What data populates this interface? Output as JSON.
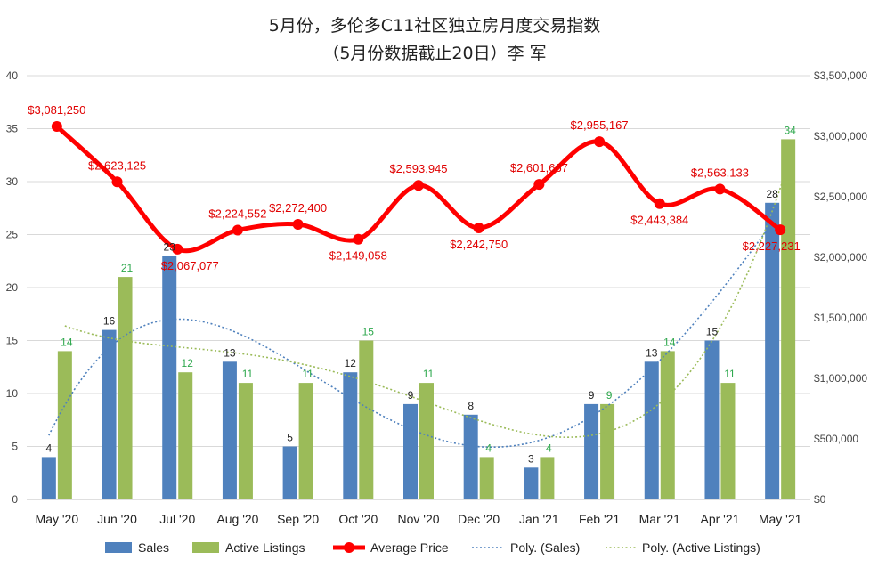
{
  "chart_data": {
    "type": "bar",
    "title_line1": "5月份，多伦多C11社区独立房月度交易指数",
    "title_line2": "（5月份数据截止20日）李 军",
    "categories": [
      "May '20",
      "Jun '20",
      "Jul '20",
      "Aug '20",
      "Sep '20",
      "Oct '20",
      "Nov '20",
      "Dec '20",
      "Jan '21",
      "Feb '21",
      "Mar '21",
      "Apr '21",
      "May '21"
    ],
    "series": [
      {
        "name": "Sales",
        "type": "bar",
        "axis": "left",
        "values": [
          4,
          16,
          23,
          13,
          5,
          12,
          9,
          8,
          3,
          9,
          13,
          15,
          28
        ]
      },
      {
        "name": "Active Listings",
        "type": "bar",
        "axis": "left",
        "values": [
          14,
          21,
          12,
          11,
          11,
          15,
          11,
          4,
          4,
          9,
          14,
          11,
          34
        ]
      },
      {
        "name": "Average Price",
        "type": "line",
        "axis": "right",
        "values": [
          3081250,
          2623125,
          2067077,
          2224552,
          2272400,
          2149058,
          2593945,
          2242750,
          2601667,
          2955167,
          2443384,
          2563133,
          2227231
        ],
        "labels": [
          "$3,081,250",
          "$2,623,125",
          "$2,067,077",
          "$2,224,552",
          "$2,272,400",
          "$2,149,058",
          "$2,593,945",
          "$2,242,750",
          "$2,601,667",
          "$2,955,167",
          "$2,443,384",
          "$2,563,133",
          "$2,227,231"
        ]
      },
      {
        "name": "Poly. (Sales)",
        "type": "trendline",
        "of": "Sales",
        "order": 4
      },
      {
        "name": "Poly. (Active Listings)",
        "type": "trendline",
        "of": "Active Listings",
        "order": 4
      }
    ],
    "y_left": {
      "min": 0,
      "max": 40,
      "ticks": [
        "0",
        "5",
        "10",
        "15",
        "20",
        "25",
        "30",
        "35",
        "40"
      ]
    },
    "y_right": {
      "min": 0,
      "max": 3500000,
      "ticks": [
        "$0",
        "$500,000",
        "$1,000,000",
        "$1,500,000",
        "$2,000,000",
        "$2,500,000",
        "$3,000,000",
        "$3,500,000"
      ]
    },
    "grid": true,
    "legend_position": "bottom",
    "colors": {
      "sales": "#4f81bd",
      "listings": "#9bbb59",
      "price": "#ff0000",
      "grid": "#d9d9d9"
    }
  }
}
